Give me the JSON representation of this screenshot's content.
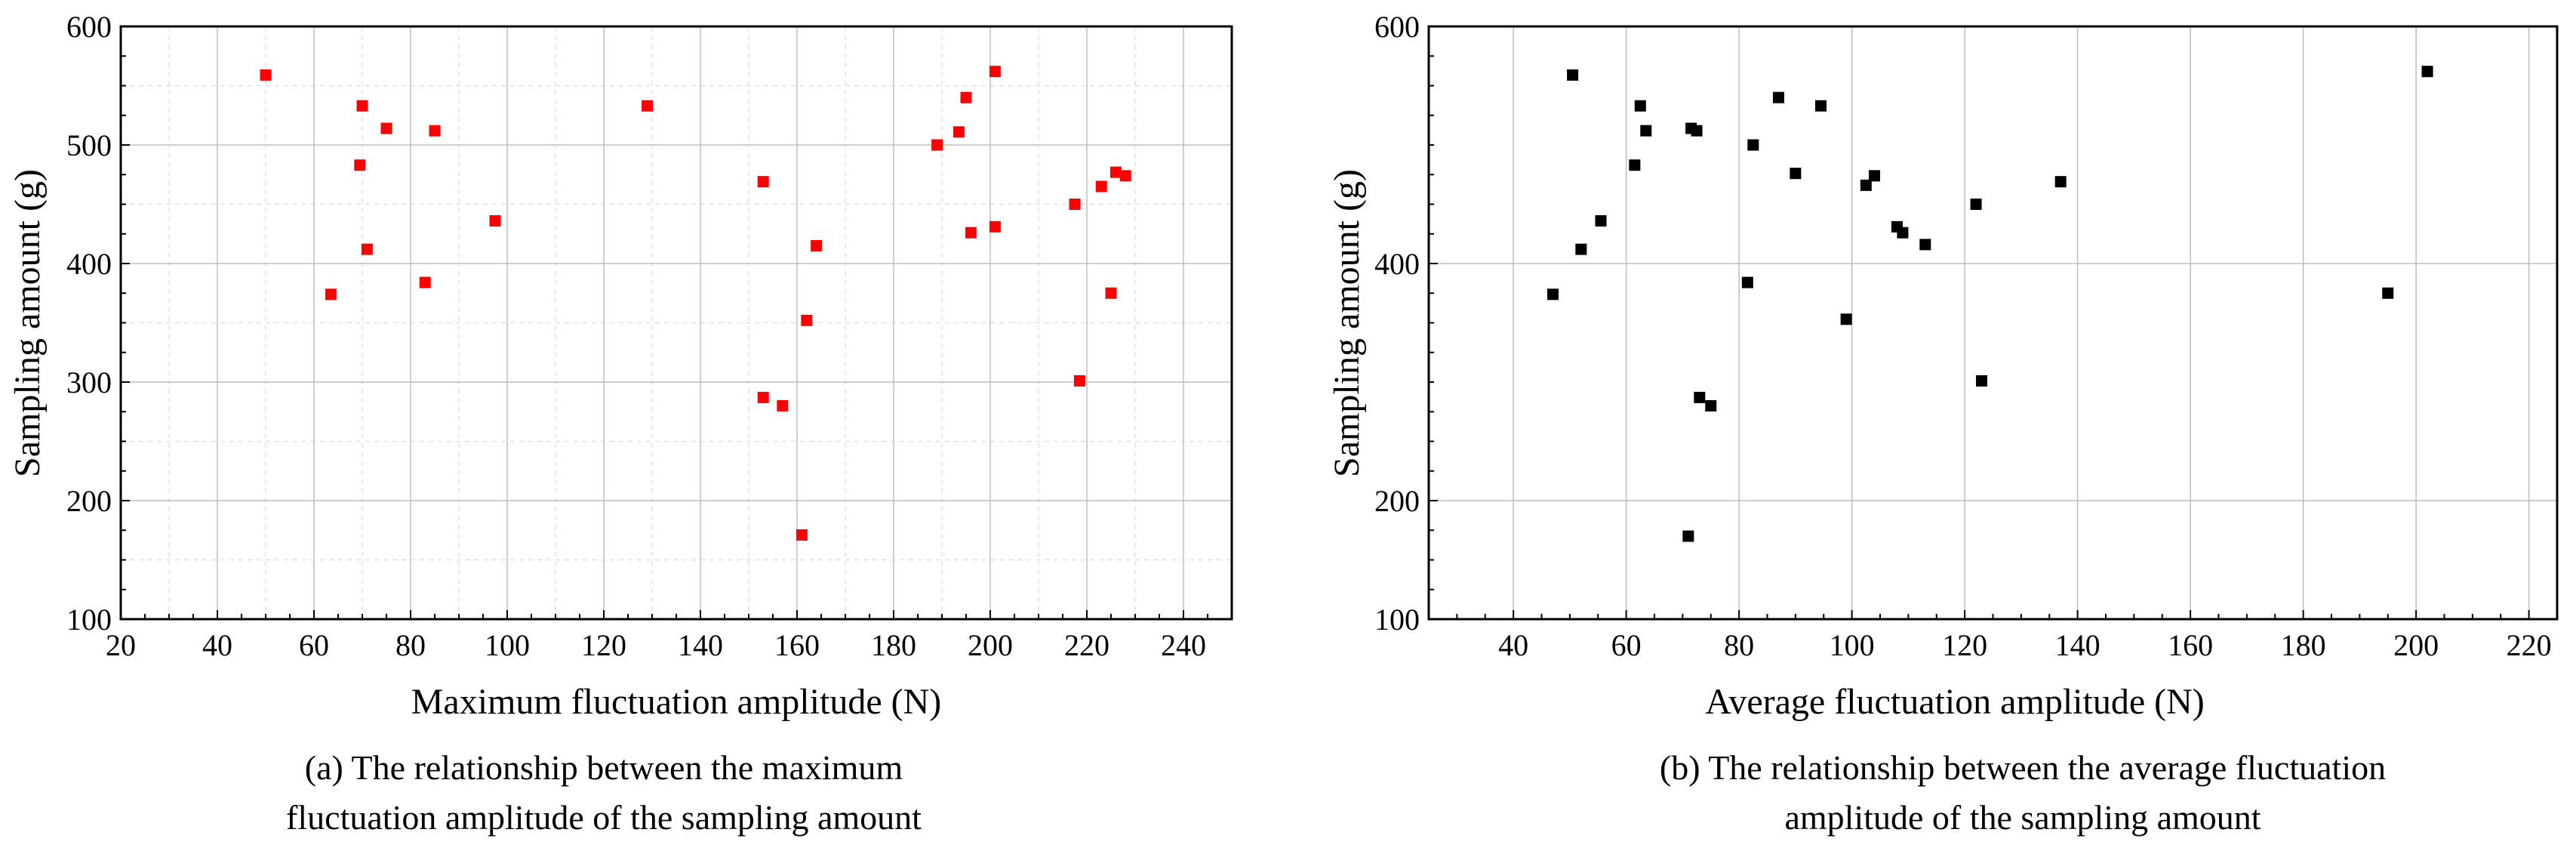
{
  "chart_data": [
    {
      "type": "scatter",
      "panel": "a",
      "caption_lines": [
        "(a) The relationship between the maximum",
        "fluctuation amplitude of the sampling amount"
      ],
      "xlabel": "Maximum fluctuation amplitude  (N)",
      "ylabel": "Sampling amount  (g)",
      "xlim": [
        20,
        250
      ],
      "ylim": [
        100,
        600
      ],
      "xticks": [
        20,
        40,
        60,
        80,
        100,
        120,
        140,
        160,
        180,
        200,
        220,
        240
      ],
      "yticks": [
        100,
        200,
        300,
        400,
        500,
        600
      ],
      "xminor_step": 10,
      "yminor_step": 50,
      "marker_color": "#ff0000",
      "points": [
        [
          50,
          559
        ],
        [
          63.5,
          374
        ],
        [
          69.5,
          483
        ],
        [
          70,
          533
        ],
        [
          71,
          412
        ],
        [
          75,
          514
        ],
        [
          83,
          384
        ],
        [
          85,
          512
        ],
        [
          97.5,
          436
        ],
        [
          129,
          533
        ],
        [
          153,
          469
        ],
        [
          153,
          287
        ],
        [
          157,
          280
        ],
        [
          161,
          171
        ],
        [
          162,
          352
        ],
        [
          164,
          415
        ],
        [
          189,
          500
        ],
        [
          193.5,
          511
        ],
        [
          195,
          540
        ],
        [
          196,
          426
        ],
        [
          201,
          562
        ],
        [
          201,
          431
        ],
        [
          217.5,
          450
        ],
        [
          218.5,
          301
        ],
        [
          223,
          465
        ],
        [
          225,
          375
        ],
        [
          226,
          477
        ],
        [
          228,
          474
        ]
      ]
    },
    {
      "type": "scatter",
      "panel": "b",
      "caption_lines": [
        "(b) The relationship between the average fluctuation",
        "amplitude of the sampling amount"
      ],
      "xlabel": "Average fluctuation amplitude  (N)",
      "ylabel": "Sampling amount  (g)",
      "xlim": [
        25,
        225
      ],
      "ylim": [
        100,
        600
      ],
      "xticks": [
        40,
        60,
        80,
        100,
        120,
        140,
        160,
        180,
        200,
        220
      ],
      "yticks": [
        100,
        200,
        400,
        600
      ],
      "marker_color": "#000000",
      "points": [
        [
          47,
          374
        ],
        [
          50.5,
          559
        ],
        [
          52,
          412
        ],
        [
          55.5,
          436
        ],
        [
          61.5,
          483
        ],
        [
          62.5,
          533
        ],
        [
          63.5,
          512
        ],
        [
          71,
          170
        ],
        [
          71.5,
          514
        ],
        [
          72.5,
          512
        ],
        [
          73,
          287
        ],
        [
          75,
          280
        ],
        [
          81.5,
          384
        ],
        [
          82.5,
          500
        ],
        [
          87,
          540
        ],
        [
          90,
          476
        ],
        [
          94.5,
          533
        ],
        [
          99,
          353
        ],
        [
          102.5,
          466
        ],
        [
          104,
          474
        ],
        [
          108,
          431
        ],
        [
          109,
          426
        ],
        [
          113,
          416
        ],
        [
          122,
          450
        ],
        [
          123,
          301
        ],
        [
          137,
          469
        ],
        [
          195,
          375
        ],
        [
          202,
          562
        ]
      ]
    }
  ]
}
